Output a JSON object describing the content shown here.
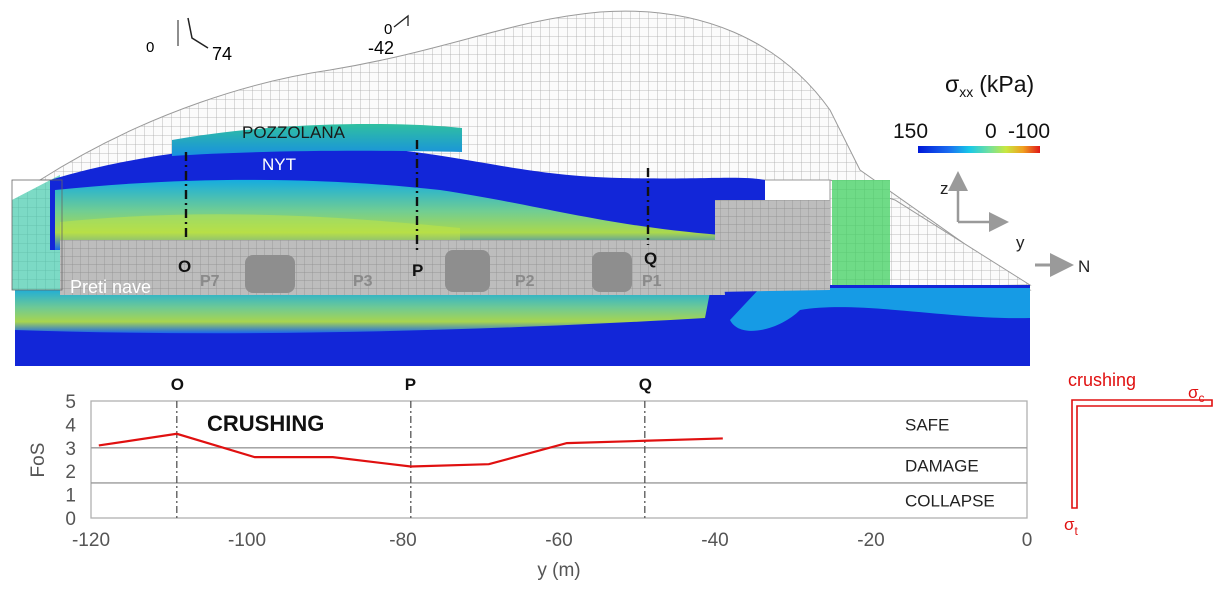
{
  "orientation_marks": [
    {
      "value": "0",
      "angle": "74"
    },
    {
      "value": "0",
      "angle": "-42"
    }
  ],
  "model": {
    "layers": {
      "top": "POZZOLANA",
      "middle": "NYT"
    },
    "area_label": "Preti nave",
    "pillars": [
      "P7",
      "P3",
      "P2",
      "P1"
    ],
    "sections": [
      "O",
      "P",
      "Q"
    ]
  },
  "legend": {
    "sigma": "σ",
    "subscript": "xx",
    "unit": "(kPa)",
    "ticks": [
      "150",
      "0",
      "-100"
    ],
    "colors": [
      "#0018d8",
      "#1a6cf0",
      "#18c8e8",
      "#70e0a0",
      "#c8e840",
      "#f0a020",
      "#e01818"
    ]
  },
  "axes_glyph": {
    "z": "z",
    "y": "y",
    "north": "N"
  },
  "chart_data": {
    "type": "line",
    "series": [
      {
        "x": [
          -119,
          -109,
          -99,
          -89,
          -79,
          -69,
          -59,
          -49,
          -39
        ],
        "y": [
          3.1,
          3.6,
          2.6,
          2.6,
          2.2,
          2.3,
          3.2,
          3.3,
          3.4
        ],
        "color": "#e01010"
      }
    ],
    "section_lines": [
      {
        "label": "O",
        "x": -109
      },
      {
        "label": "P",
        "x": -79
      },
      {
        "label": "Q",
        "x": -49
      }
    ],
    "annotation": "CRUSHING",
    "zones": [
      {
        "label": "SAFE",
        "from": 3,
        "to": 5
      },
      {
        "label": "DAMAGE",
        "from": 1.5,
        "to": 3
      },
      {
        "label": "COLLAPSE",
        "from": 0,
        "to": 1.5
      }
    ],
    "thresholds": [
      3,
      1.5
    ],
    "xlabel": "y (m)",
    "ylabel": "FoS",
    "xlim": [
      -120,
      0
    ],
    "ylim": [
      0,
      5
    ],
    "x_ticks": [
      "-120",
      "-100",
      "-80",
      "-60",
      "-40",
      "-20",
      "0"
    ],
    "y_ticks": [
      "0",
      "1",
      "2",
      "3",
      "4",
      "5"
    ]
  },
  "inset": {
    "title": "crushing",
    "sigma_c": "σ",
    "sub_c": "c",
    "sigma_t": "σ",
    "sub_t": "t"
  }
}
